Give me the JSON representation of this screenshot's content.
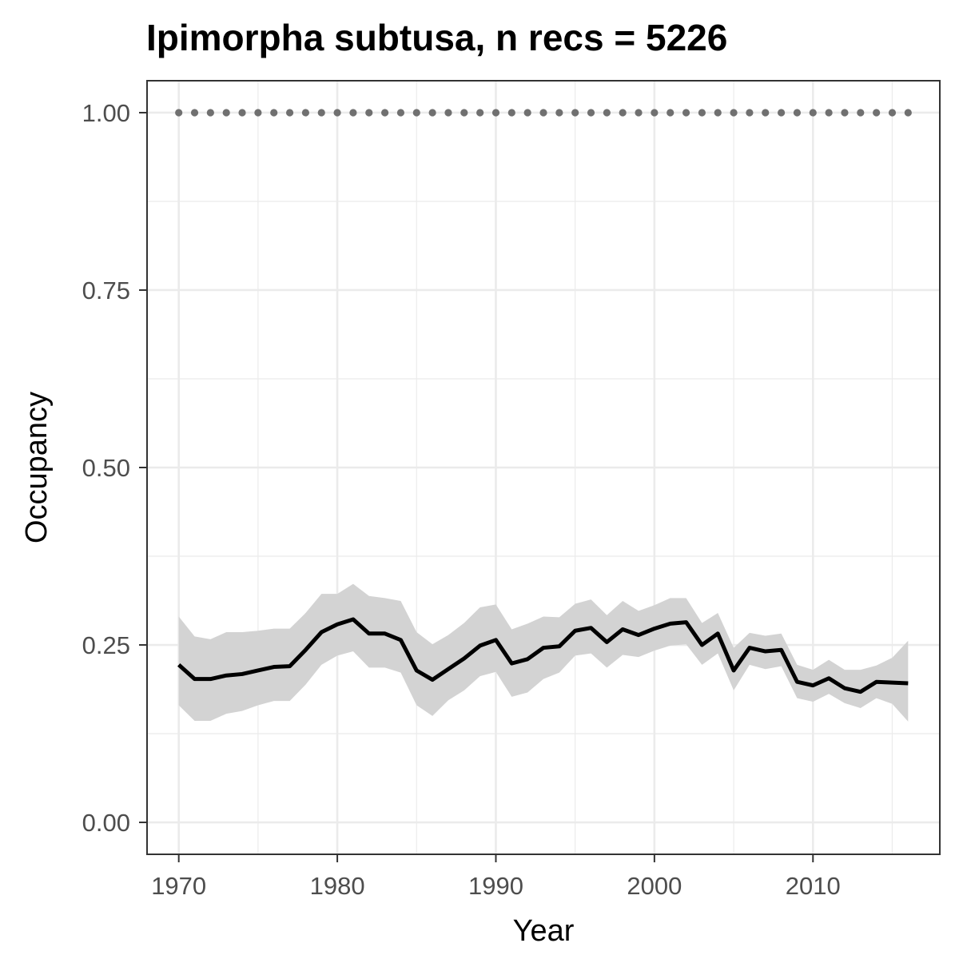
{
  "chart_data": {
    "type": "line",
    "title": "Ipimorpha subtusa, n recs = 5226",
    "xlabel": "Year",
    "ylabel": "Occupancy",
    "xlim": [
      1968,
      2018
    ],
    "ylim": [
      -0.045,
      1.045
    ],
    "x_ticks": [
      1970,
      1980,
      1990,
      2000,
      2010
    ],
    "x_tick_labels": [
      "1970",
      "1980",
      "1990",
      "2000",
      "2010"
    ],
    "y_ticks": [
      0,
      0.25,
      0.5,
      0.75,
      1
    ],
    "y_tick_labels": [
      "0.00",
      "0.25",
      "0.50",
      "0.75",
      "1.00"
    ],
    "grid": true,
    "legend": "none",
    "series": [
      {
        "role": "mean",
        "color": "#000000",
        "x": [
          1970,
          1971,
          1972,
          1973,
          1974,
          1975,
          1976,
          1977,
          1978,
          1979,
          1980,
          1981,
          1982,
          1983,
          1984,
          1985,
          1986,
          1987,
          1988,
          1989,
          1990,
          1991,
          1992,
          1993,
          1994,
          1995,
          1996,
          1997,
          1998,
          1999,
          2000,
          2001,
          2002,
          2003,
          2004,
          2005,
          2006,
          2007,
          2008,
          2009,
          2010,
          2011,
          2012,
          2013,
          2014,
          2015,
          2016
        ],
        "y": [
          0.222,
          0.202,
          0.202,
          0.207,
          0.209,
          0.214,
          0.219,
          0.22,
          0.243,
          0.268,
          0.279,
          0.286,
          0.266,
          0.266,
          0.257,
          0.214,
          0.201,
          0.216,
          0.231,
          0.249,
          0.257,
          0.224,
          0.23,
          0.246,
          0.248,
          0.27,
          0.274,
          0.254,
          0.272,
          0.264,
          0.273,
          0.28,
          0.282,
          0.25,
          0.266,
          0.214,
          0.246,
          0.241,
          0.243,
          0.198,
          0.193,
          0.203,
          0.189,
          0.184,
          0.198,
          0.197,
          0.196
        ]
      },
      {
        "role": "confidence-band",
        "color": "#d3d3d3",
        "x": [
          1970,
          1971,
          1972,
          1973,
          1974,
          1975,
          1976,
          1977,
          1978,
          1979,
          1980,
          1981,
          1982,
          1983,
          1984,
          1985,
          1986,
          1987,
          1988,
          1989,
          1990,
          1991,
          1992,
          1993,
          1994,
          1995,
          1996,
          1997,
          1998,
          1999,
          2000,
          2001,
          2002,
          2003,
          2004,
          2005,
          2006,
          2007,
          2008,
          2009,
          2010,
          2011,
          2012,
          2013,
          2014,
          2015,
          2016
        ],
        "lower": [
          0.165,
          0.143,
          0.143,
          0.153,
          0.157,
          0.165,
          0.171,
          0.171,
          0.194,
          0.222,
          0.235,
          0.241,
          0.218,
          0.218,
          0.211,
          0.165,
          0.15,
          0.172,
          0.186,
          0.206,
          0.212,
          0.177,
          0.183,
          0.202,
          0.211,
          0.235,
          0.238,
          0.218,
          0.236,
          0.233,
          0.242,
          0.249,
          0.251,
          0.222,
          0.238,
          0.186,
          0.222,
          0.216,
          0.22,
          0.175,
          0.17,
          0.181,
          0.168,
          0.161,
          0.175,
          0.167,
          0.142
        ],
        "upper": [
          0.29,
          0.262,
          0.258,
          0.268,
          0.268,
          0.27,
          0.273,
          0.273,
          0.295,
          0.322,
          0.322,
          0.336,
          0.319,
          0.316,
          0.312,
          0.268,
          0.251,
          0.264,
          0.281,
          0.303,
          0.307,
          0.272,
          0.28,
          0.29,
          0.289,
          0.308,
          0.314,
          0.292,
          0.312,
          0.298,
          0.306,
          0.316,
          0.316,
          0.281,
          0.295,
          0.246,
          0.267,
          0.263,
          0.266,
          0.222,
          0.215,
          0.229,
          0.215,
          0.215,
          0.221,
          0.232,
          0.256
        ]
      },
      {
        "role": "reference-dots",
        "color": "#707070",
        "x": [
          1970,
          1971,
          1972,
          1973,
          1974,
          1975,
          1976,
          1977,
          1978,
          1979,
          1980,
          1981,
          1982,
          1983,
          1984,
          1985,
          1986,
          1987,
          1988,
          1989,
          1990,
          1991,
          1992,
          1993,
          1994,
          1995,
          1996,
          1997,
          1998,
          1999,
          2000,
          2001,
          2002,
          2003,
          2004,
          2005,
          2006,
          2007,
          2008,
          2009,
          2010,
          2011,
          2012,
          2013,
          2014,
          2015,
          2016
        ],
        "y": [
          1,
          1,
          1,
          1,
          1,
          1,
          1,
          1,
          1,
          1,
          1,
          1,
          1,
          1,
          1,
          1,
          1,
          1,
          1,
          1,
          1,
          1,
          1,
          1,
          1,
          1,
          1,
          1,
          1,
          1,
          1,
          1,
          1,
          1,
          1,
          1,
          1,
          1,
          1,
          1,
          1,
          1,
          1,
          1,
          1,
          1,
          1
        ]
      }
    ]
  }
}
